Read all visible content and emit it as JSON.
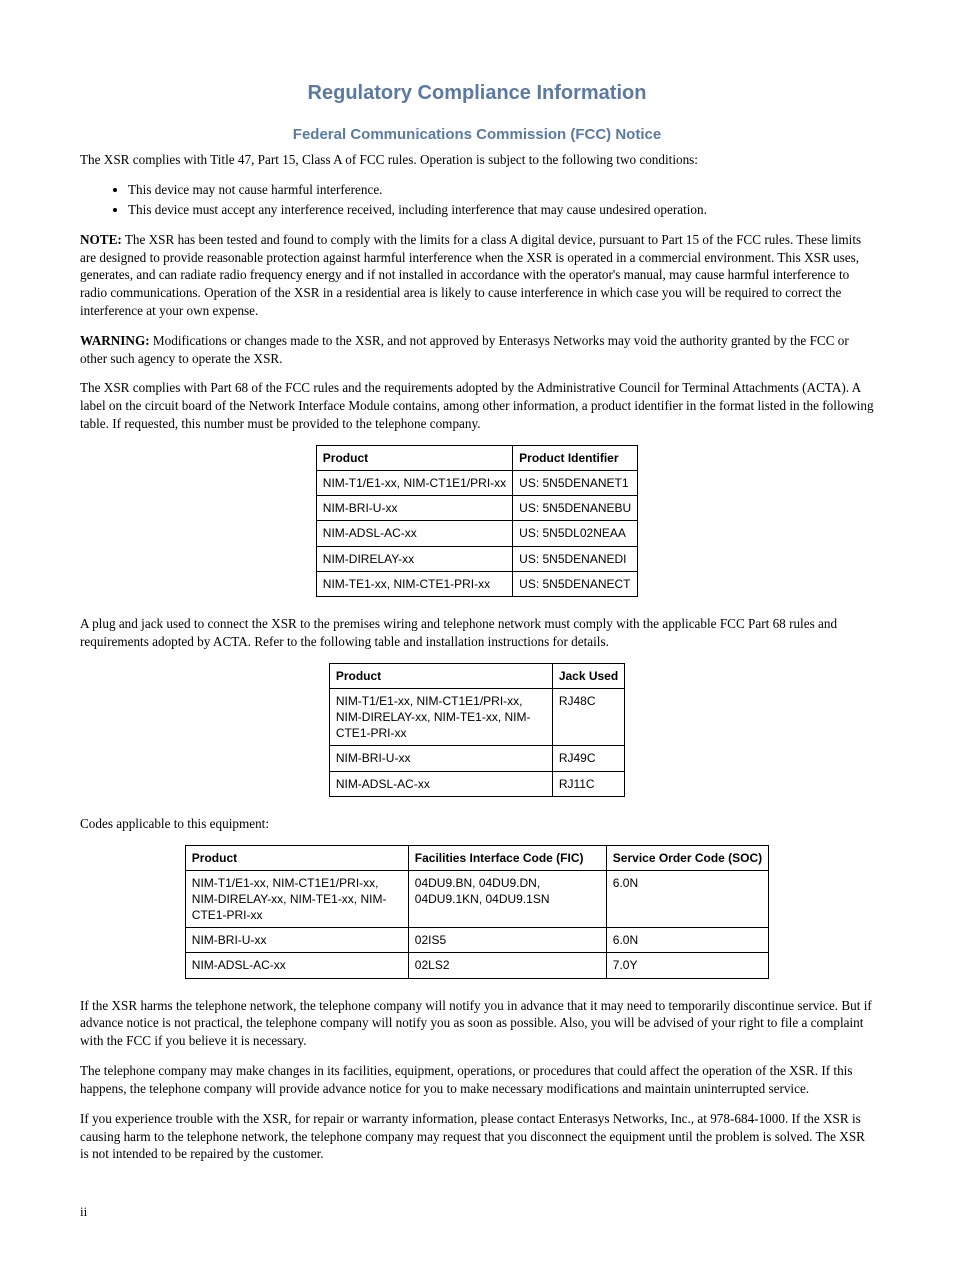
{
  "title": "Regulatory Compliance Information",
  "subtitle": "Federal Communications Commission (FCC) Notice",
  "intro": "The XSR complies with Title 47, Part 15, Class A of FCC rules. Operation is subject to the following two conditions:",
  "bullets": [
    "This device may not cause harmful interference.",
    "This device must accept any interference received, including interference that may cause undesired operation."
  ],
  "note_label": "NOTE:",
  "note_body": "The XSR has been tested and found to comply with the limits for a class A digital device, pursuant to Part 15 of the FCC rules. These limits are designed to provide reasonable protection against harmful interference when the XSR is operated in a commercial environment. This XSR uses, generates, and can radiate radio frequency energy and if not installed in accordance with the operator's manual, may cause harmful interference to radio communications. Operation of the XSR in a residential area is likely to cause interference in which case you will be required to correct the interference at your own expense.",
  "warning_label": "WARNING:",
  "warning_body": "Modifications or changes made to the XSR, and not approved by Enterasys Networks may void the authority granted by the FCC or other such agency to operate the XSR.",
  "acta_para": "The XSR complies with Part 68 of the FCC rules and the requirements adopted by the Administrative Council for Terminal Attachments (ACTA). A label on the circuit board of the Network Interface Module contains, among other information, a product identifier in the format listed in the following table. If requested, this number must be provided to the telephone company.",
  "table1": {
    "headers": [
      "Product",
      "Product Identifier"
    ],
    "rows": [
      [
        "NIM-T1/E1-xx, NIM-CT1E1/PRI-xx",
        "US: 5N5DENANET1"
      ],
      [
        "NIM-BRI-U-xx",
        "US: 5N5DENANEBU"
      ],
      [
        "NIM-ADSL-AC-xx",
        "US: 5N5DL02NEAA"
      ],
      [
        "NIM-DIRELAY-xx",
        "US: 5N5DENANEDI"
      ],
      [
        "NIM-TE1-xx, NIM-CTE1-PRI-xx",
        "US: 5N5DENANECT"
      ]
    ]
  },
  "plug_para": "A plug and jack used to connect the XSR to the premises wiring and telephone network must comply with the applicable FCC Part 68 rules and requirements adopted by ACTA. Refer to the following table and installation instructions for details.",
  "table2": {
    "headers": [
      "Product",
      "Jack Used"
    ],
    "rows": [
      [
        "NIM-T1/E1-xx, NIM-CT1E1/PRI-xx, NIM-DIRELAY-xx, NIM-TE1-xx, NIM-CTE1-PRI-xx",
        "RJ48C"
      ],
      [
        "NIM-BRI-U-xx",
        "RJ49C"
      ],
      [
        "NIM-ADSL-AC-xx",
        "RJ11C"
      ]
    ],
    "col1_width": 210
  },
  "codes_intro": "Codes applicable to this equipment:",
  "table3": {
    "headers": [
      "Product",
      "Facilities Interface Code (FIC)",
      "Service Order Code (SOC)"
    ],
    "rows": [
      [
        "NIM-T1/E1-xx, NIM-CT1E1/PRI-xx, NIM-DIRELAY-xx, NIM-TE1-xx, NIM-CTE1-PRI-xx",
        "04DU9.BN, 04DU9.DN, 04DU9.1KN, 04DU9.1SN",
        "6.0N"
      ],
      [
        "NIM-BRI-U-xx",
        "02IS5",
        "6.0N"
      ],
      [
        "NIM-ADSL-AC-xx",
        "02LS2",
        "7.0Y"
      ]
    ],
    "col1_width": 210,
    "col2_width": 185
  },
  "harm_para": "If the XSR harms the telephone network, the telephone company will notify you in advance that it may need to temporarily discontinue service. But if advance notice is not practical, the telephone company will notify you as soon as possible. Also, you will be advised of your right to file a complaint with the FCC if you believe it is necessary.",
  "changes_para": "The telephone company may make changes in its facilities, equipment, operations, or procedures that could affect the operation of the XSR. If this happens, the telephone company will provide advance notice for you to make necessary modifications and maintain uninterrupted service.",
  "trouble_para": "If you experience trouble with the XSR, for repair or warranty information, please contact Enterasys Networks, Inc., at 978-684-1000. If the XSR is causing harm to the telephone network, the telephone company may request that you disconnect the equipment until the problem is solved. The XSR is not intended to be repaired by the customer.",
  "page_number": "ii"
}
